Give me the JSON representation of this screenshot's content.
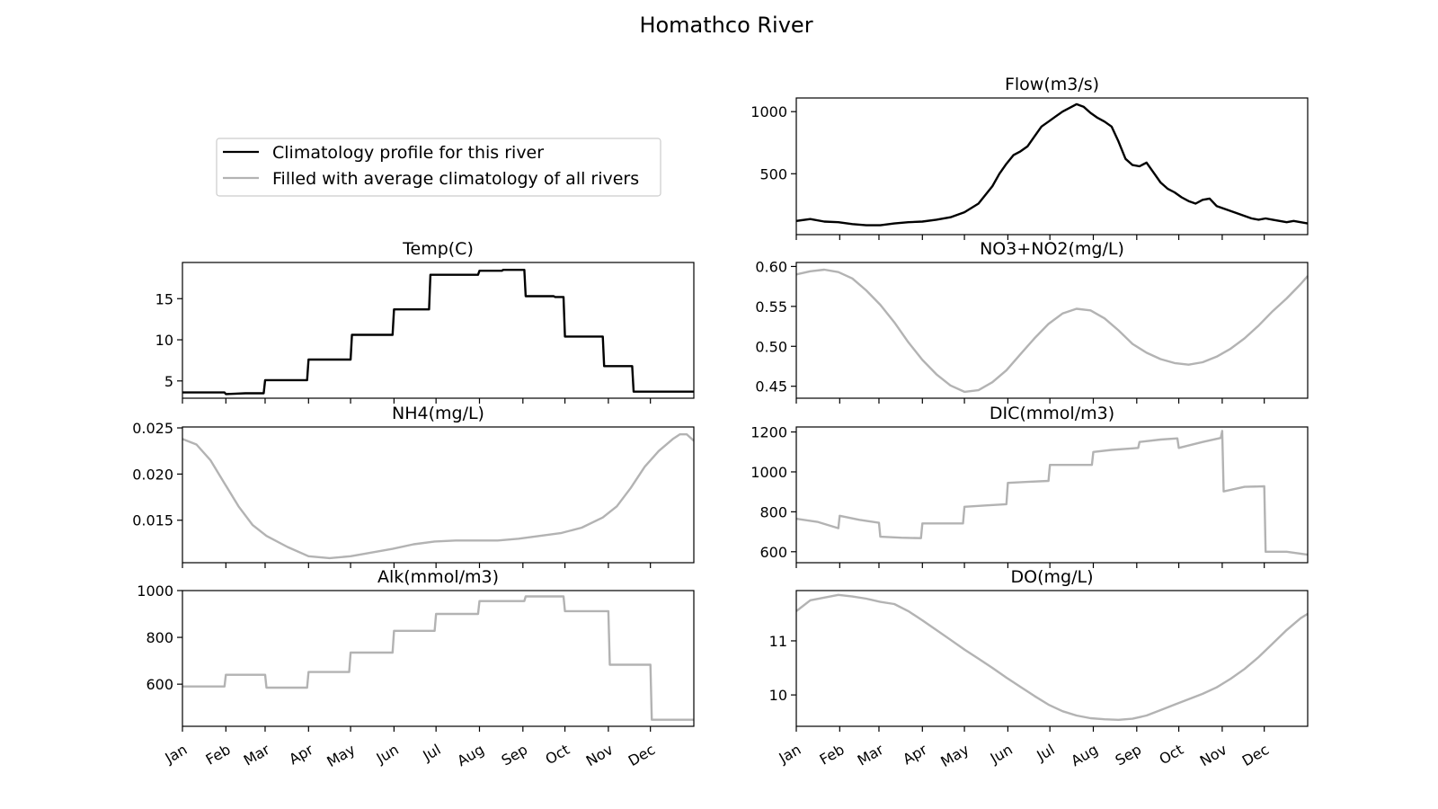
{
  "figure": {
    "title": "Homathco River"
  },
  "legend": {
    "entries": [
      {
        "label": "Climatology profile for this river",
        "color": "#000000"
      },
      {
        "label": "Filled with average climatology of all rivers",
        "color": "#b3b3b3"
      }
    ]
  },
  "month_labels": [
    "Jan",
    "Feb",
    "Mar",
    "Apr",
    "May",
    "Jun",
    "Jul",
    "Aug",
    "Sep",
    "Oct",
    "Nov",
    "Dec"
  ],
  "chart_data": [
    {
      "type": "line",
      "title": "Temp(C)",
      "ylim": [
        2.9,
        19.4
      ],
      "yticks": [
        5,
        10,
        15
      ],
      "ytick_labels": [
        "5",
        "10",
        "15"
      ],
      "xlim": [
        0,
        365
      ],
      "show_month_labels": false,
      "series": [
        {
          "color": "#000000",
          "x": [
            0,
            30,
            31,
            45,
            46,
            58,
            59,
            89,
            90,
            100,
            101,
            120,
            121,
            131,
            132,
            150,
            151,
            176,
            177,
            181,
            182,
            201,
            202,
            211,
            212,
            228,
            229,
            244,
            245,
            265,
            266,
            272,
            273,
            285,
            286,
            300,
            301,
            321,
            322,
            365
          ],
          "y": [
            3.6,
            3.6,
            3.4,
            3.5,
            3.5,
            3.5,
            5.1,
            5.1,
            7.6,
            7.6,
            7.6,
            7.6,
            10.6,
            10.6,
            10.6,
            10.6,
            13.7,
            13.7,
            17.9,
            17.9,
            17.9,
            17.9,
            17.9,
            17.9,
            18.4,
            18.4,
            18.5,
            18.5,
            15.3,
            15.3,
            15.2,
            15.2,
            10.4,
            10.4,
            10.4,
            10.4,
            6.8,
            6.8,
            3.7,
            3.7
          ]
        }
      ]
    },
    {
      "type": "line",
      "title": "NH4(mg/L)",
      "ylim": [
        0.0104,
        0.0251
      ],
      "yticks": [
        0.015,
        0.02,
        0.025
      ],
      "ytick_labels": [
        "0.015",
        "0.020",
        "0.025"
      ],
      "xlim": [
        0,
        365
      ],
      "show_month_labels": false,
      "series": [
        {
          "color": "#b3b3b3",
          "x": [
            0,
            10,
            20,
            30,
            40,
            50,
            60,
            75,
            90,
            105,
            120,
            135,
            150,
            165,
            180,
            195,
            210,
            225,
            240,
            255,
            270,
            285,
            300,
            310,
            320,
            330,
            340,
            350,
            355,
            360,
            365
          ],
          "y": [
            0.0238,
            0.0232,
            0.0215,
            0.019,
            0.0165,
            0.0145,
            0.0133,
            0.0121,
            0.0111,
            0.0109,
            0.0111,
            0.0115,
            0.0119,
            0.0124,
            0.0127,
            0.0128,
            0.0128,
            0.0128,
            0.013,
            0.0133,
            0.0136,
            0.0142,
            0.0153,
            0.0165,
            0.0185,
            0.0208,
            0.0225,
            0.0238,
            0.0243,
            0.0243,
            0.0236
          ]
        }
      ]
    },
    {
      "type": "line",
      "title": "Alk(mmol/m3)",
      "ylim": [
        420,
        1000
      ],
      "yticks": [
        600,
        800,
        1000
      ],
      "ytick_labels": [
        "600",
        "800",
        "1000"
      ],
      "xlim": [
        0,
        365
      ],
      "show_month_labels": true,
      "series": [
        {
          "color": "#b3b3b3",
          "x": [
            0,
            30,
            31,
            59,
            60,
            89,
            90,
            119,
            120,
            150,
            151,
            180,
            181,
            211,
            212,
            244,
            245,
            272,
            273,
            304,
            305,
            334,
            335,
            365
          ],
          "y": [
            590,
            590,
            640,
            640,
            585,
            585,
            652,
            652,
            735,
            735,
            828,
            828,
            900,
            900,
            955,
            955,
            975,
            975,
            912,
            912,
            683,
            683,
            448,
            448
          ]
        }
      ]
    },
    {
      "type": "line",
      "title": "Flow(m3/s)",
      "ylim": [
        10,
        1110
      ],
      "yticks": [
        500,
        1000
      ],
      "ytick_labels": [
        "500",
        "1000"
      ],
      "xlim": [
        0,
        365
      ],
      "show_month_labels": false,
      "series": [
        {
          "color": "#000000",
          "x": [
            0,
            10,
            20,
            30,
            40,
            50,
            60,
            70,
            80,
            90,
            100,
            110,
            120,
            130,
            140,
            145,
            150,
            155,
            160,
            165,
            170,
            175,
            180,
            185,
            190,
            195,
            200,
            205,
            210,
            215,
            220,
            225,
            230,
            235,
            240,
            245,
            250,
            255,
            260,
            265,
            270,
            275,
            280,
            285,
            290,
            295,
            300,
            305,
            310,
            315,
            320,
            325,
            330,
            335,
            340,
            345,
            350,
            355,
            360,
            365
          ],
          "y": [
            120,
            135,
            115,
            110,
            95,
            85,
            85,
            100,
            110,
            115,
            130,
            150,
            190,
            260,
            400,
            500,
            580,
            650,
            680,
            720,
            800,
            880,
            920,
            960,
            1000,
            1030,
            1060,
            1040,
            990,
            950,
            920,
            880,
            760,
            620,
            570,
            560,
            590,
            510,
            430,
            380,
            350,
            310,
            280,
            260,
            290,
            300,
            240,
            220,
            200,
            180,
            160,
            140,
            130,
            140,
            130,
            120,
            110,
            120,
            110,
            100
          ]
        }
      ]
    },
    {
      "type": "line",
      "title": "NO3+NO2(mg/L)",
      "ylim": [
        0.435,
        0.605
      ],
      "yticks": [
        0.45,
        0.5,
        0.55,
        0.6
      ],
      "ytick_labels": [
        "0.45",
        "0.50",
        "0.55",
        "0.60"
      ],
      "xlim": [
        0,
        365
      ],
      "show_month_labels": false,
      "series": [
        {
          "color": "#b3b3b3",
          "x": [
            0,
            10,
            20,
            30,
            40,
            50,
            60,
            70,
            80,
            90,
            100,
            110,
            120,
            130,
            140,
            150,
            160,
            170,
            180,
            190,
            200,
            210,
            220,
            230,
            240,
            250,
            260,
            270,
            280,
            290,
            300,
            310,
            320,
            330,
            340,
            350,
            360,
            365
          ],
          "y": [
            0.59,
            0.594,
            0.596,
            0.593,
            0.585,
            0.57,
            0.552,
            0.53,
            0.505,
            0.483,
            0.465,
            0.451,
            0.443,
            0.445,
            0.455,
            0.47,
            0.49,
            0.51,
            0.528,
            0.541,
            0.547,
            0.545,
            0.535,
            0.52,
            0.503,
            0.492,
            0.484,
            0.479,
            0.477,
            0.48,
            0.487,
            0.497,
            0.51,
            0.526,
            0.544,
            0.56,
            0.578,
            0.588
          ]
        }
      ]
    },
    {
      "type": "line",
      "title": "DIC(mmol/m3)",
      "ylim": [
        545,
        1225
      ],
      "yticks": [
        600,
        800,
        1000,
        1200
      ],
      "ytick_labels": [
        "600",
        "800",
        "1000",
        "1200"
      ],
      "xlim": [
        0,
        365
      ],
      "show_month_labels": false,
      "series": [
        {
          "color": "#b3b3b3",
          "x": [
            0,
            15,
            30,
            31,
            45,
            59,
            60,
            75,
            89,
            90,
            105,
            119,
            120,
            135,
            150,
            151,
            165,
            180,
            181,
            195,
            211,
            212,
            225,
            240,
            244,
            245,
            260,
            272,
            273,
            290,
            303,
            304,
            305,
            320,
            334,
            335,
            350,
            365
          ],
          "y": [
            765,
            750,
            718,
            780,
            760,
            745,
            675,
            670,
            668,
            742,
            742,
            742,
            825,
            832,
            838,
            945,
            950,
            955,
            1035,
            1035,
            1035,
            1100,
            1110,
            1118,
            1120,
            1150,
            1162,
            1168,
            1120,
            1150,
            1170,
            1205,
            902,
            925,
            928,
            600,
            600,
            585
          ]
        }
      ]
    },
    {
      "type": "line",
      "title": "DO(mg/L)",
      "ylim": [
        9.42,
        11.93
      ],
      "yticks": [
        10,
        11
      ],
      "ytick_labels": [
        "10",
        "11"
      ],
      "xlim": [
        0,
        365
      ],
      "show_month_labels": true,
      "series": [
        {
          "color": "#b3b3b3",
          "x": [
            0,
            10,
            20,
            30,
            40,
            50,
            60,
            70,
            80,
            90,
            100,
            110,
            120,
            130,
            140,
            150,
            160,
            170,
            180,
            190,
            200,
            210,
            220,
            230,
            240,
            250,
            260,
            270,
            280,
            290,
            300,
            310,
            320,
            330,
            340,
            350,
            360,
            365
          ],
          "y": [
            11.55,
            11.75,
            11.8,
            11.85,
            11.82,
            11.78,
            11.72,
            11.68,
            11.55,
            11.38,
            11.2,
            11.02,
            10.84,
            10.67,
            10.5,
            10.32,
            10.15,
            9.98,
            9.82,
            9.7,
            9.62,
            9.57,
            9.55,
            9.54,
            9.56,
            9.62,
            9.72,
            9.82,
            9.92,
            10.02,
            10.14,
            10.3,
            10.48,
            10.7,
            10.95,
            11.2,
            11.42,
            11.5
          ]
        }
      ]
    }
  ]
}
